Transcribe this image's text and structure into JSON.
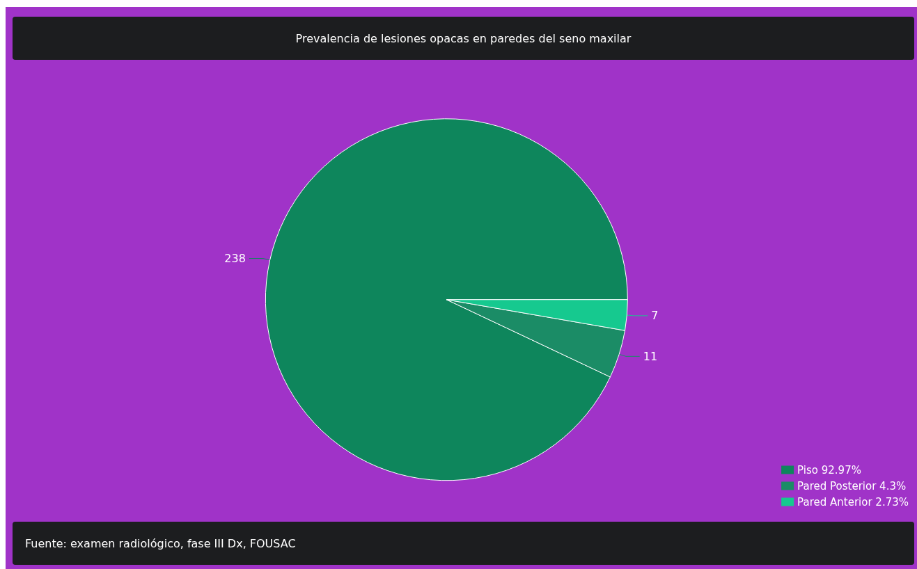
{
  "chart_data": {
    "type": "pie",
    "title": "Prevalencia de lesiones opacas en paredes del seno maxilar",
    "categories": [
      "Piso 92.97%",
      "Pared Posterior 4.3%",
      "Pared Anterior 2.73%"
    ],
    "values": [
      238,
      11,
      7
    ],
    "colors": [
      "#0e865c",
      "#1b8c66",
      "#16c98f"
    ],
    "data_labels": true,
    "legend": "bottom right",
    "annotations": [
      "Fuente: examen radiológico, fase III Dx, FOUSAC"
    ]
  }
}
